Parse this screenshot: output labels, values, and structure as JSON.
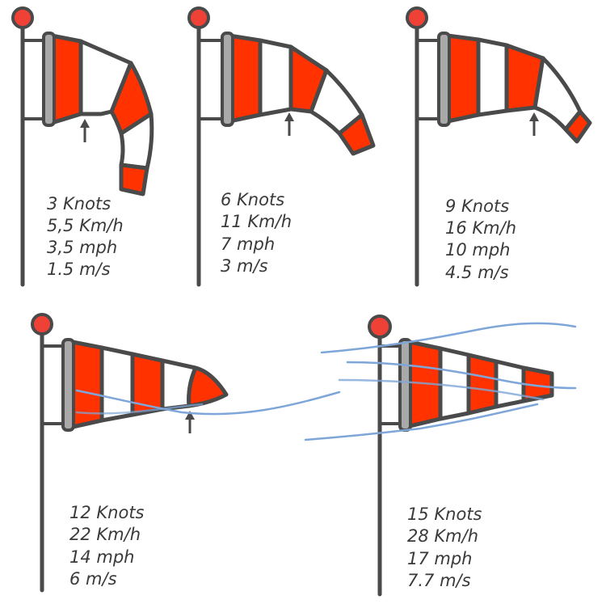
{
  "colors": {
    "outline": "#4a4a4a",
    "stripe_red": "#ff3200",
    "stripe_white": "#ffffff",
    "pole_ball": "#ef4135",
    "collar": "#a9a9a9",
    "wind_line": "#7ea6d8",
    "text": "#3a3a3a"
  },
  "windsocks": [
    {
      "id": "ws1",
      "lines": [
        "3 Knots",
        "5,5 Km/h",
        "3,5 mph",
        "1.5 m/s"
      ],
      "has_arrow": true
    },
    {
      "id": "ws2",
      "lines": [
        "6 Knots",
        "11 Km/h",
        "7 mph",
        "3 m/s"
      ],
      "has_arrow": true
    },
    {
      "id": "ws3",
      "lines": [
        "9 Knots",
        "16 Km/h",
        "10 mph",
        "4.5 m/s"
      ],
      "has_arrow": true
    },
    {
      "id": "ws4",
      "lines": [
        "12 Knots",
        "22 Km/h",
        "14 mph",
        "6 m/s"
      ],
      "has_arrow": true
    },
    {
      "id": "ws5",
      "lines": [
        "15 Knots",
        "28 Km/h",
        "17 mph",
        "7.7 m/s"
      ],
      "has_arrow": false
    }
  ]
}
